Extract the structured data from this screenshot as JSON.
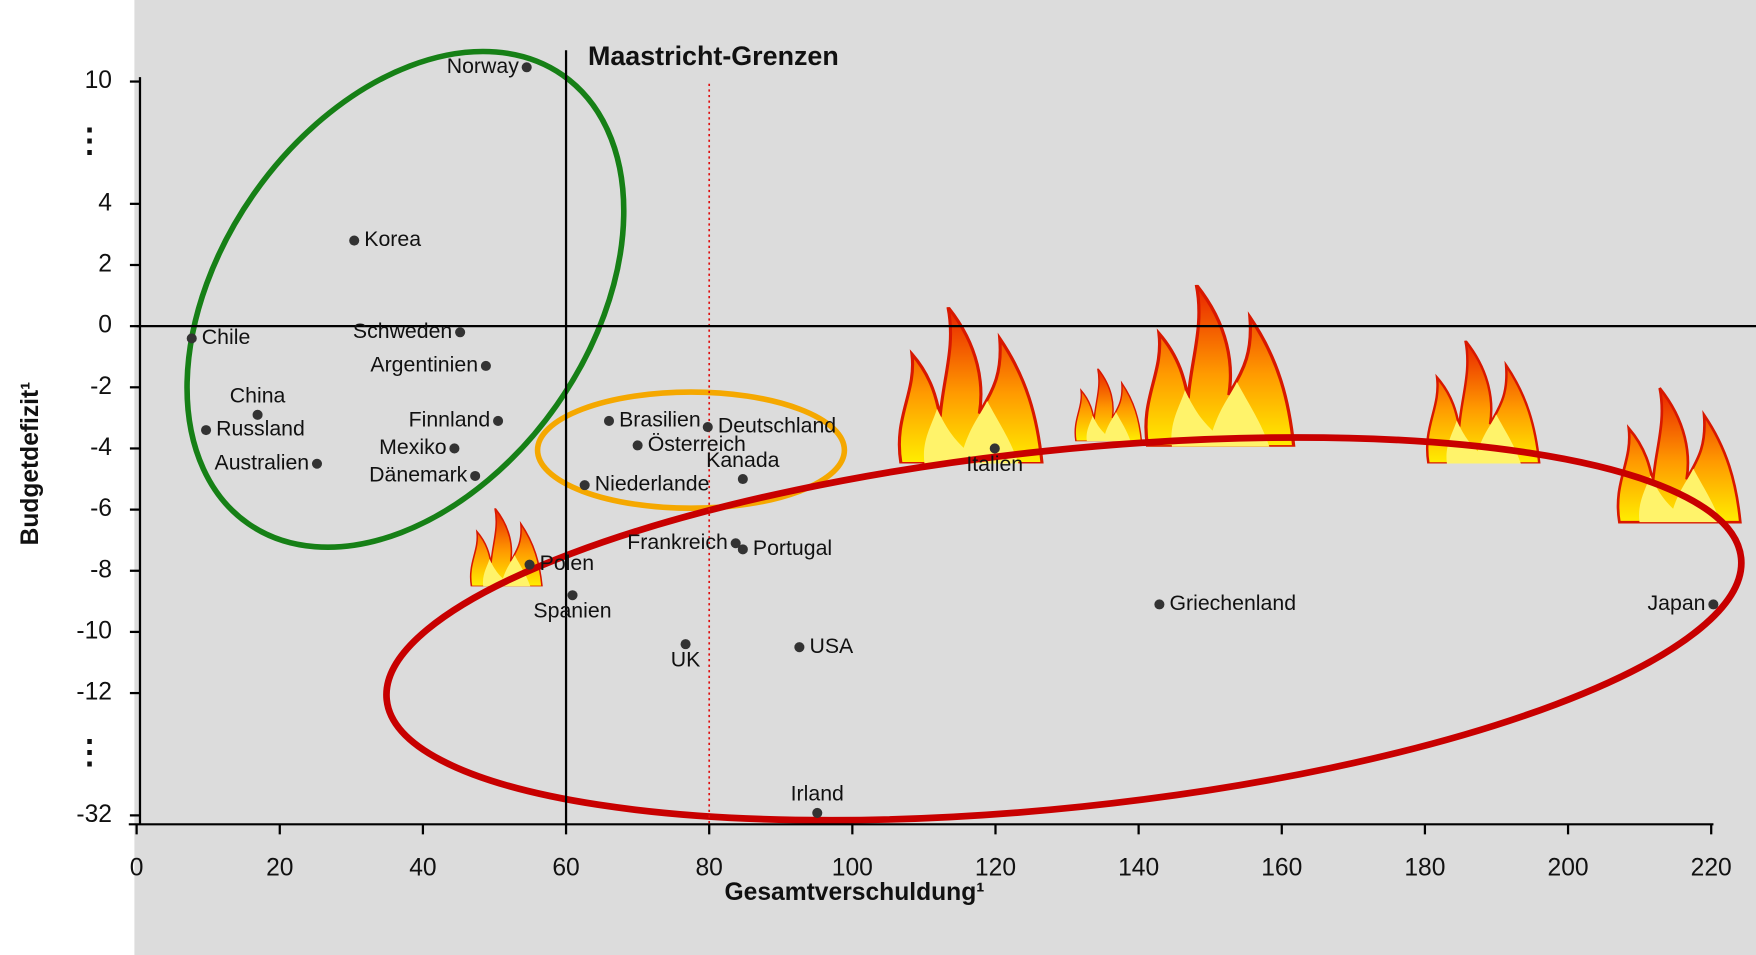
{
  "chart_data": {
    "type": "scatter",
    "title": "Maastricht-Grenzen",
    "x_label": "Gesamtverschuldung¹",
    "y_label": "Budgetdefizit¹",
    "labels": [
      "Norway",
      "Korea",
      "Chile",
      "Schweden",
      "Argentinien",
      "China",
      "Russland",
      "Finnland",
      "Mexiko",
      "Australien",
      "Dänemark",
      "Brasilien",
      "Deutschland",
      "Österreich",
      "Kanada",
      "Niederlande",
      "Italien",
      "Frankreich",
      "Portugal",
      "Polen",
      "Spanien",
      "Griechenland",
      "Japan",
      "UK",
      "USA",
      "Irland"
    ],
    "x": [
      54.5,
      30.4,
      7.7,
      45.2,
      48.8,
      16.9,
      9.7,
      50.5,
      44.4,
      25.2,
      47.3,
      66.0,
      79.8,
      70.0,
      84.7,
      62.6,
      119.9,
      83.7,
      84.7,
      54.9,
      60.9,
      142.9,
      220.3,
      76.7,
      92.6,
      95.1
    ],
    "values": [
      10.7,
      2.8,
      -0.4,
      -0.2,
      -1.3,
      -2.9,
      -3.4,
      -3.1,
      -4.0,
      -4.5,
      -4.9,
      -3.1,
      -3.3,
      -3.9,
      -5.0,
      -5.2,
      -4.0,
      -7.1,
      -7.3,
      -7.8,
      -8.8,
      -9.1,
      -9.1,
      -10.4,
      -10.5,
      -31.6
    ],
    "color": "#333333",
    "xlim": [
      0,
      220
    ],
    "xticks": [
      0,
      20,
      40,
      60,
      80,
      100,
      120,
      140,
      160,
      180,
      200,
      220
    ],
    "ylim": [
      -32,
      10
    ],
    "yticks": [
      10,
      4,
      2,
      0,
      -2,
      -4,
      -6,
      -8,
      -10,
      -12,
      -32
    ],
    "y_break_label": "⋮",
    "reference_lines": [
      {
        "axis": "x",
        "value": 60,
        "color": "#000000",
        "dash": false
      },
      {
        "axis": "x",
        "value": 80,
        "color": "#e01010",
        "dash": true
      },
      {
        "axis": "y",
        "value": 0,
        "color": "#000000",
        "dash": false
      }
    ]
  }
}
